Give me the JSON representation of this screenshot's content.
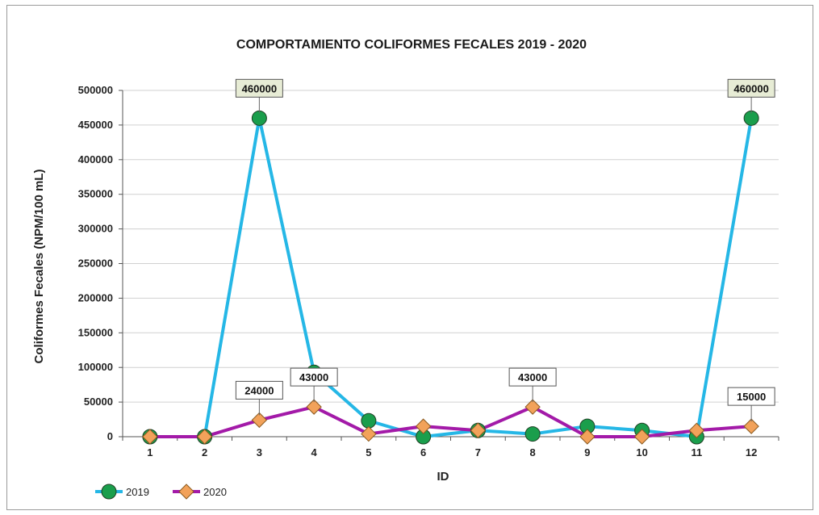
{
  "chart_data": {
    "type": "line",
    "title": "COMPORTAMIENTO COLIFORMES FECALES 2019 -  2020",
    "xlabel": "ID",
    "ylabel": "Coliformes Fecales (NPM/100 mL)",
    "categories": [
      "1",
      "2",
      "3",
      "4",
      "5",
      "6",
      "7",
      "8",
      "9",
      "10",
      "11",
      "12"
    ],
    "ylim": [
      0,
      500000
    ],
    "yticks": [
      0,
      50000,
      100000,
      150000,
      200000,
      250000,
      300000,
      350000,
      400000,
      450000,
      500000
    ],
    "grid": true,
    "legend_position": "bottom-left",
    "series": [
      {
        "name": "2019",
        "color": "#25b7e6",
        "marker": "circle",
        "marker_color": "#1a9e4c",
        "values": [
          0,
          0,
          460000,
          93000,
          23000,
          0,
          9000,
          4000,
          15000,
          9000,
          0,
          460000
        ],
        "data_labels": [
          {
            "index": 2,
            "text": "460000"
          },
          {
            "index": 11,
            "text": "460000"
          }
        ]
      },
      {
        "name": "2020",
        "color": "#a31aa8",
        "marker": "diamond",
        "marker_color": "#f2a25a",
        "values": [
          0,
          0,
          24000,
          43000,
          4000,
          15000,
          9000,
          43000,
          0,
          0,
          9000,
          15000
        ],
        "data_labels": [
          {
            "index": 2,
            "text": "24000"
          },
          {
            "index": 3,
            "text": "43000"
          },
          {
            "index": 7,
            "text": "43000"
          },
          {
            "index": 11,
            "text": "15000"
          }
        ]
      }
    ]
  }
}
